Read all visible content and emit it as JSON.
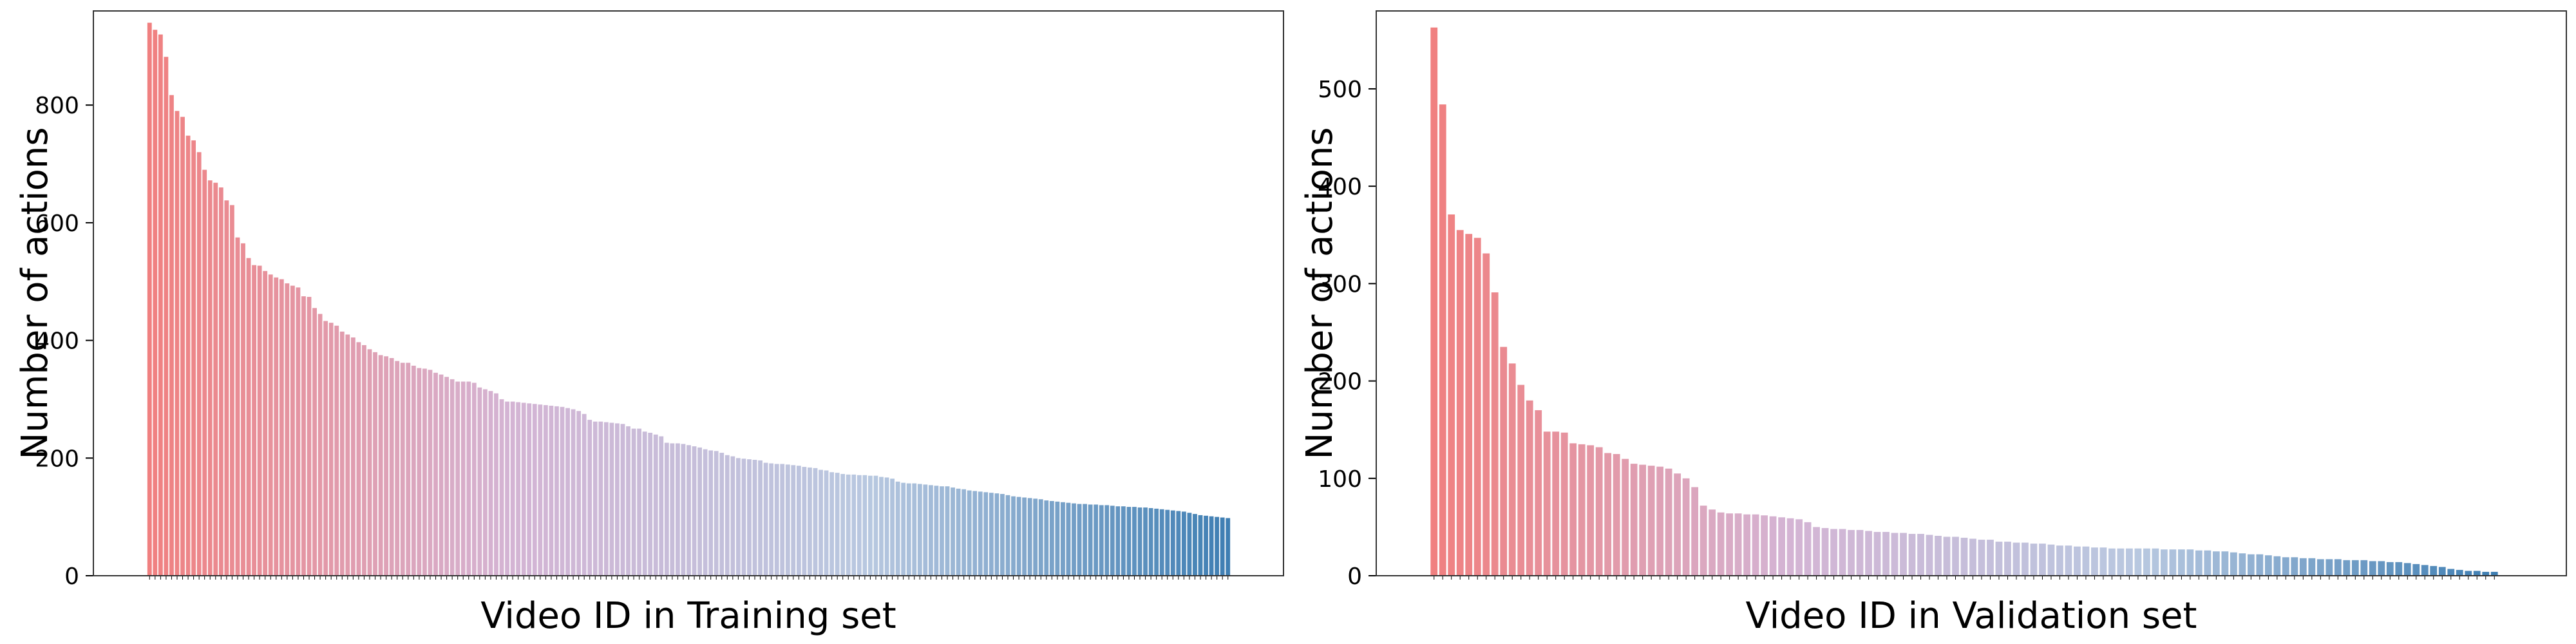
{
  "chart_data": [
    {
      "type": "bar",
      "xlabel": "Video ID in Training set",
      "ylabel": "Number of actions",
      "ylim": [
        0,
        960
      ],
      "yticks": [
        0,
        200,
        400,
        600,
        800
      ],
      "grid": false,
      "color_gradient": [
        "#f08080",
        "#d4b4d4",
        "#b8c8e0",
        "#3f7fb3"
      ],
      "x_tick_labels_note": "per-bar video ID tick labels are rendered too small to read",
      "values": [
        940,
        928,
        920,
        882,
        817,
        790,
        780,
        748,
        740,
        720,
        690,
        672,
        668,
        660,
        638,
        630,
        575,
        565,
        540,
        528,
        527,
        518,
        512,
        507,
        504,
        497,
        493,
        490,
        475,
        474,
        455,
        445,
        433,
        430,
        425,
        415,
        410,
        405,
        397,
        392,
        385,
        380,
        375,
        373,
        370,
        365,
        362,
        362,
        357,
        353,
        352,
        350,
        345,
        342,
        338,
        334,
        330,
        330,
        330,
        328,
        320,
        317,
        314,
        310,
        300,
        296,
        296,
        295,
        294,
        293,
        292,
        291,
        290,
        289,
        288,
        287,
        285,
        283,
        280,
        275,
        265,
        262,
        262,
        261,
        260,
        259,
        258,
        254,
        250,
        250,
        245,
        243,
        240,
        237,
        226,
        225,
        225,
        224,
        222,
        220,
        218,
        215,
        213,
        212,
        209,
        205,
        203,
        200,
        199,
        198,
        197,
        196,
        192,
        191,
        190,
        190,
        189,
        188,
        187,
        185,
        184,
        183,
        180,
        179,
        176,
        175,
        173,
        172,
        172,
        171,
        171,
        170,
        170,
        168,
        167,
        165,
        160,
        158,
        157,
        157,
        156,
        155,
        154,
        153,
        152,
        152,
        150,
        148,
        147,
        145,
        144,
        143,
        142,
        141,
        140,
        139,
        137,
        135,
        134,
        133,
        132,
        131,
        130,
        128,
        127,
        126,
        125,
        124,
        123,
        122,
        122,
        121,
        121,
        120,
        120,
        119,
        118,
        118,
        117,
        117,
        116,
        116,
        115,
        114,
        113,
        112,
        111,
        110,
        109,
        107,
        105,
        103,
        102,
        101,
        100,
        99,
        98
      ]
    },
    {
      "type": "bar",
      "xlabel": "Video ID in Validation set",
      "ylabel": "Number of actions",
      "ylim": [
        0,
        580
      ],
      "yticks": [
        0,
        100,
        200,
        300,
        400,
        500
      ],
      "grid": false,
      "color_gradient": [
        "#f08080",
        "#d4b4d4",
        "#b8c8e0",
        "#3f7fb3"
      ],
      "x_tick_labels_note": "per-bar video ID tick labels are rendered too small to read",
      "values": [
        563,
        484,
        371,
        355,
        351,
        347,
        331,
        291,
        235,
        218,
        196,
        180,
        170,
        148,
        148,
        147,
        136,
        135,
        134,
        132,
        126,
        125,
        120,
        115,
        114,
        113,
        112,
        110,
        105,
        100,
        91,
        72,
        68,
        65,
        64,
        64,
        63,
        63,
        62,
        61,
        60,
        59,
        58,
        55,
        50,
        49,
        48,
        48,
        47,
        47,
        46,
        45,
        45,
        44,
        44,
        43,
        43,
        42,
        41,
        40,
        40,
        39,
        38,
        37,
        37,
        35,
        35,
        34,
        34,
        33,
        33,
        32,
        31,
        31,
        30,
        30,
        29,
        29,
        28,
        28,
        28,
        28,
        28,
        28,
        27,
        27,
        27,
        27,
        26,
        26,
        25,
        25,
        24,
        23,
        22,
        22,
        21,
        20,
        19,
        19,
        18,
        18,
        17,
        17,
        17,
        16,
        16,
        16,
        15,
        15,
        14,
        14,
        13,
        12,
        11,
        10,
        9,
        7,
        6,
        5,
        5,
        4,
        4
      ]
    }
  ]
}
